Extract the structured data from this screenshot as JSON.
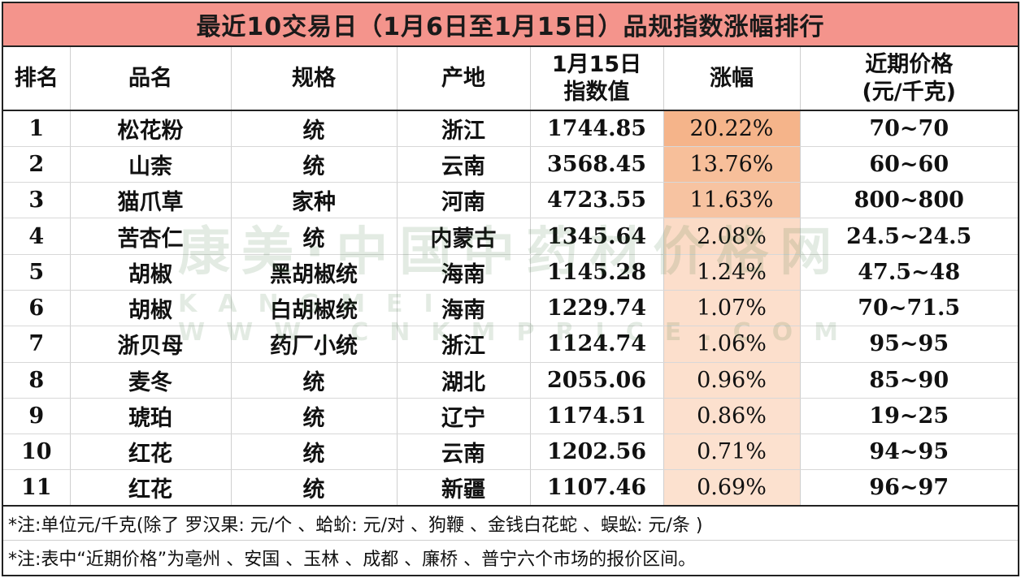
{
  "title": "最近10交易日（1月6日至1月15日）品规指数涨幅排行",
  "columns": [
    {
      "label": "排名",
      "label2": ""
    },
    {
      "label": "品名",
      "label2": ""
    },
    {
      "label": "规格",
      "label2": ""
    },
    {
      "label": "产地",
      "label2": ""
    },
    {
      "label": "1月15日",
      "label2": "指数值"
    },
    {
      "label": "涨幅",
      "label2": ""
    },
    {
      "label": "近期价格",
      "label2": "(元/千克)"
    }
  ],
  "rows": [
    {
      "rank": "1",
      "name": "松花粉",
      "spec": "统",
      "origin": "浙江",
      "index": "1744.85",
      "pct": "20.22%",
      "price": "70~70",
      "pct_value": 20.22
    },
    {
      "rank": "2",
      "name": "山柰",
      "spec": "统",
      "origin": "云南",
      "index": "3568.45",
      "pct": "13.76%",
      "price": "60~60",
      "pct_value": 13.76
    },
    {
      "rank": "3",
      "name": "猫爪草",
      "spec": "家种",
      "origin": "河南",
      "index": "4723.55",
      "pct": "11.63%",
      "price": "800~800",
      "pct_value": 11.63
    },
    {
      "rank": "4",
      "name": "苦杏仁",
      "spec": "统",
      "origin": "内蒙古",
      "index": "1345.64",
      "pct": "2.08%",
      "price": "24.5~24.5",
      "pct_value": 2.08
    },
    {
      "rank": "5",
      "name": "胡椒",
      "spec": "黑胡椒统",
      "origin": "海南",
      "index": "1145.28",
      "pct": "1.24%",
      "price": "47.5~48",
      "pct_value": 1.24
    },
    {
      "rank": "6",
      "name": "胡椒",
      "spec": "白胡椒统",
      "origin": "海南",
      "index": "1229.74",
      "pct": "1.07%",
      "price": "70~71.5",
      "pct_value": 1.07
    },
    {
      "rank": "7",
      "name": "浙贝母",
      "spec": "药厂小统",
      "origin": "浙江",
      "index": "1124.74",
      "pct": "1.06%",
      "price": "95~95",
      "pct_value": 1.06
    },
    {
      "rank": "8",
      "name": "麦冬",
      "spec": "统",
      "origin": "湖北",
      "index": "2055.06",
      "pct": "0.96%",
      "price": "85~90",
      "pct_value": 0.96
    },
    {
      "rank": "9",
      "name": "琥珀",
      "spec": "统",
      "origin": "辽宁",
      "index": "1174.51",
      "pct": "0.86%",
      "price": "19~25",
      "pct_value": 0.86
    },
    {
      "rank": "10",
      "name": "红花",
      "spec": "统",
      "origin": "云南",
      "index": "1202.56",
      "pct": "0.71%",
      "price": "94~95",
      "pct_value": 0.71
    },
    {
      "rank": "11",
      "name": "红花",
      "spec": "统",
      "origin": "新疆",
      "index": "1107.46",
      "pct": "0.69%",
      "price": "96~97",
      "pct_value": 0.69
    }
  ],
  "notes": [
    "*注:单位元/千克(除了 罗汉果: 元/个 、蛤蚧: 元/对 、狗鞭 、金钱白花蛇 、蜈蚣: 元/条 )",
    "*注:表中“近期价格”为亳州 、安国 、玉林 、成都 、廉桥 、普宁六个市场的报价区间。"
  ],
  "watermark": {
    "line1": "康美·中国中药材价格网",
    "line2": "KANGMEI WWW.CNKMPRICE.COM"
  },
  "colors": {
    "title_bg": "#f4948c",
    "pct_high": "#f5b48a",
    "pct_low": "#fde8da"
  }
}
